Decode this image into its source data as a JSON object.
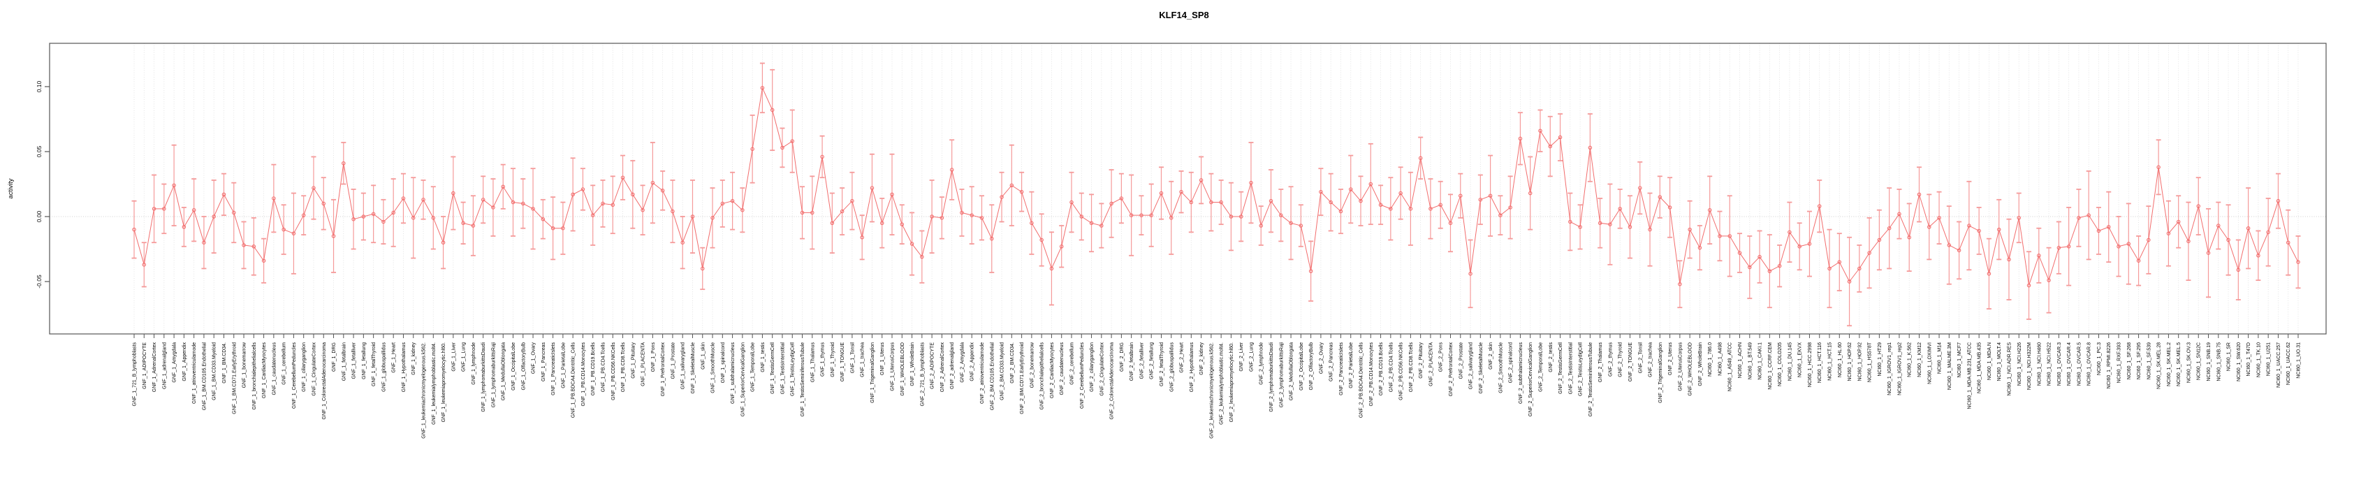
{
  "chart_data": {
    "type": "line",
    "title": "KLF14_SP8",
    "ylabel": "activity",
    "xlabel": "",
    "ylim": [
      -0.09,
      0.133
    ],
    "yticks": [
      "-0.05",
      "0.00",
      "0.05",
      "0.10"
    ],
    "ytick_values": [
      -0.05,
      0.0,
      0.05,
      0.1
    ],
    "grid": "vertical-dotted-per-category, dotted zero line",
    "legend": "none",
    "series_color": "#f26d6d",
    "errorbar_color": "#f59a9a",
    "gridline_color": "#dcdcdc",
    "box_color": "#555555",
    "categories": [
      "GNF_1_721_B_lymphoblasts",
      "GNF_1_ADIPOCYTE",
      "GNF_1_AdrenalCortex",
      "GNF_1_adrenalgland",
      "GNF_1_Amygdala",
      "GNF_1_Appendix",
      "GNF_1_atrioventricularnode",
      "GNF_1_BM.CD105.Endothelial",
      "GNF_1_BM.CD33.Myeloid",
      "GNF_1_BM.CD34.",
      "GNF_1_BM.CD71.EarlyErythroid",
      "GNF_1_bonemarrow",
      "GNF_1_bronchialepithelialcells",
      "GNF_1_CardiacMyocytes",
      "GNF_1_caudatenucleus",
      "GNF_1_cerebellum",
      "GNF_1_CerebellumPeduncles",
      "GNF_1_ciliaryganglion",
      "GNF_1_CingulateCortex",
      "GNF_1_ColorectalAdenocarcinoma",
      "GNF_1_DRG",
      "GNF_1_fetalbrain",
      "GNF_1_fetalliver",
      "GNF_1_fetallung",
      "GNF_1_fetalThyroid",
      "GNF_1_globuspallidus",
      "GNF_1_Heart",
      "GNF_1_Hypothalamus",
      "GNF_1_kidney",
      "GNF_1_leukemiachronicmyelogenous.k562.",
      "GNF_1_leukemialymphoblastic.molt4.",
      "GNF_1_leukemiapromyelocytic.hl60.",
      "GNF_1_Liver",
      "GNF_1_Lung",
      "GNF_1_lymphnode",
      "GNF_1_lymphomaburkittsDaudi",
      "GNF_1_lymphomaburkittsRaji",
      "GNF_1_MedullaOblongata",
      "GNF_1_OccipitalLobe",
      "GNF_1_OlfactoryBulb",
      "GNF_1_Ovary",
      "GNF_1_Pancreas",
      "GNF_1_PancreaticIslets",
      "GNF_1_ParietalLobe",
      "GNF_1_PB.BDCA4.Dentritic_Cells",
      "GNF_1_PB.CD14.Monocytes",
      "GNF_1_PB.CD19.Bcells",
      "GNF_1_PB.CD4.Tcells",
      "GNF_1_PB.CD56.NKCells",
      "GNF_1_PB.CD8.Tcells",
      "GNF_1_Pituitary",
      "GNF_1_PLACENTA",
      "GNF_1_Pons",
      "GNF_1_PrefrontalCortex",
      "GNF_1_Prostate",
      "GNF_1_salivarygland",
      "GNF_1_SkeletalMuscle",
      "GNF_1_skin",
      "GNF_1_SmoothMuscle",
      "GNF_1_spinalcord",
      "GNF_1_subthalamicnucleus",
      "GNF_1_SuperiorCervicalGanglion",
      "GNF_1_TemporalLobe",
      "GNF_1_testis",
      "GNF_1_TestisGermCell",
      "GNF_1_TestisInterstitial",
      "GNF_1_TestisLeydigCell",
      "GNF_1_TestisSeminiferousTubule",
      "GNF_1_Thalamus",
      "GNF_1_thymus",
      "GNF_1_Thyroid",
      "GNF_1_TONGUE",
      "GNF_1_Tonsil",
      "GNF_1_trachea",
      "GNF_1_TrigeminalGanglion",
      "GNF_1_Uterus",
      "GNF_1_UterusCorpus",
      "GNF_1_WHOLEBLOOD",
      "GNF_1_WholeBrain",
      "GNF_2_721_B_lymphoblasts",
      "GNF_2_ADIPOCYTE",
      "GNF_2_AdrenalCortex",
      "GNF_2_adrenalgland",
      "GNF_2_Amygdala",
      "GNF_2_Appendix",
      "GNF_2_atrioventricularnode",
      "GNF_2_BM.CD105.Endothelial",
      "GNF_2_BM.CD33.Myeloid",
      "GNF_2_BM.CD34.",
      "GNF_2_BM.CD71.EarlyErythroid",
      "GNF_2_bonemarrow",
      "GNF_2_bronchialepithelialcells",
      "GNF_2_CardiacMyocytes",
      "GNF_2_caudatenucleus",
      "GNF_2_cerebellum",
      "GNF_2_CerebellumPeduncles",
      "GNF_2_ciliaryganglion",
      "GNF_2_CingulateCortex",
      "GNF_2_ColorectalAdenocarcinoma",
      "GNF_2_DRG",
      "GNF_2_fetalbrain",
      "GNF_2_fetalliver",
      "GNF_2_fetallung",
      "GNF_2_fetalThyroid",
      "GNF_2_globuspallidus",
      "GNF_2_Heart",
      "GNF_2_Hypothalamus",
      "GNF_2_kidney",
      "GNF_2_leukemiachronicmyelogenous.k562.",
      "GNF_2_leukemialymphoblastic.molt4.",
      "GNF_2_leukemiapromyelocytic.hl60.",
      "GNF_2_Liver",
      "GNF_2_Lung",
      "GNF_2_lymphnode",
      "GNF_2_lymphomaburkittsDaudi",
      "GNF_2_lymphomaburkittsRaji",
      "GNF_2_MedullaOblongata",
      "GNF_2_OccipitalLobe",
      "GNF_2_OlfactoryBulb",
      "GNF_2_Ovary",
      "GNF_2_Pancreas",
      "GNF_2_PancreaticIslets",
      "GNF_2_ParietalLobe",
      "GNF_2_PB.BDCA4.Dentritic_Cells",
      "GNF_2_PB.CD14.Monocytes",
      "GNF_2_PB.CD19.Bcells",
      "GNF_2_PB.CD4.Tcells",
      "GNF_2_PB.CD56.NKCells",
      "GNF_2_PB.CD8.Tcells",
      "GNF_2_Pituitary",
      "GNF_2_PLACENTA",
      "GNF_2_Pons",
      "GNF_2_PrefrontalCortex",
      "GNF_2_Prostate",
      "GNF_2_salivarygland",
      "GNF_2_SkeletalMuscle",
      "GNF_2_skin",
      "GNF_2_SmoothMuscle",
      "GNF_2_spinalcord",
      "GNF_2_subthalamicnucleus",
      "GNF_2_SuperiorCervicalGanglion",
      "GNF_2_TemporalLobe",
      "GNF_2_testis",
      "GNF_2_TestisGermCell",
      "GNF_2_TestisInterstitial",
      "GNF_2_TestisLeydigCell",
      "GNF_2_TestisSeminiferousTubule",
      "GNF_2_Thalamus",
      "GNF_2_thymus",
      "GNF_2_Thyroid",
      "GNF_2_TONGUE",
      "GNF_2_Tonsil",
      "GNF_2_trachea",
      "GNF_2_TrigeminalGanglion",
      "GNF_2_Uterus",
      "GNF_2_UterusCorpus",
      "GNF_2_WHOLEBLOOD",
      "GNF_2_WholeBrain",
      "NCI60_1_786.0",
      "NCI60_1_A498",
      "NCI60_1_A549_ATCC",
      "NCI60_1_ACHN",
      "NCI60_1_BT.549",
      "NCI60_1_CAKI.1",
      "NCI60_1_CCRF.CEM",
      "NCI60_1_COLO205",
      "NCI60_1_DU.145",
      "NCI60_1_EKVX",
      "NCI60_1_HCC.2998",
      "NCI60_1_HCT.116",
      "NCI60_1_HCT.15",
      "NCI60_1_HL.60",
      "NCI60_1_HOP.62",
      "NCI60_1_HOP.92",
      "NCI60_1_HS578T",
      "NCI60_1_HT29",
      "NCI60_1_IGROV1_rep1",
      "NCI60_1_IGROV1_rep2",
      "NCI60_1_K.562",
      "NCI60_1_KM12",
      "NCI60_1_LOXIMVI",
      "NCI60_1_M14",
      "NCI60_1_MALME.3M",
      "NCI60_1_MCF7",
      "NCI60_1_MDA.MB.231_ATCC",
      "NCI60_1_MDA.MB.435",
      "NCI60_1_MDA.N",
      "NCI60_1_MOLT.4",
      "NCI60_1_NCI.ADR.RES",
      "NCI60_1_NCI.H226",
      "NCI60_1_NCI.H322M",
      "NCI60_1_NCI.H460",
      "NCI60_1_NCI.H522",
      "NCI60_1_OVCAR.3",
      "NCI60_1_OVCAR.4",
      "NCI60_1_OVCAR.5",
      "NCI60_1_OVCAR.8",
      "NCI60_1_PC.3",
      "NCI60_1_RPMI.8226",
      "NCI60_1_RXF.393",
      "NCI60_1_SF.268",
      "NCI60_1_SF.295",
      "NCI60_1_SF.539",
      "NCI60_1_SK.MEL.28",
      "NCI60_1_SK.MEL.2",
      "NCI60_1_SK.MEL.5",
      "NCI60_1_SK.OV.3",
      "NCI60_1_SN12C",
      "NCI60_1_SNB.19",
      "NCI60_1_SNB.75",
      "NCI60_1_SR",
      "NCI60_1_SW.620",
      "NCI60_1_T47D",
      "NCI60_1_TK.10",
      "NCI60_1_U251",
      "NCI60_1_UACC.257",
      "NCI60_1_UACC.62",
      "NCI60_1_UO.31"
    ],
    "values": [
      -0.01,
      -0.037,
      0.006,
      0.006,
      0.024,
      -0.008,
      0.005,
      -0.02,
      0.0,
      0.017,
      0.003,
      -0.022,
      -0.023,
      -0.034,
      0.014,
      -0.01,
      -0.013,
      0.001,
      0.022,
      0.01,
      -0.015,
      0.041,
      -0.002,
      0.0,
      0.002,
      -0.004,
      0.003,
      0.014,
      -0.001,
      0.013,
      -0.001,
      -0.02,
      0.018,
      -0.005,
      -0.007,
      0.013,
      0.007,
      0.023,
      0.011,
      0.01,
      0.006,
      -0.002,
      -0.009,
      -0.009,
      0.017,
      0.021,
      0.001,
      0.01,
      0.009,
      0.03,
      0.017,
      0.005,
      0.026,
      0.02,
      0.004,
      -0.02,
      0.0,
      -0.04,
      -0.001,
      0.01,
      0.012,
      0.005,
      0.052,
      0.099,
      0.082,
      0.053,
      0.058,
      0.003,
      0.003,
      0.046,
      -0.005,
      0.004,
      0.012,
      -0.016,
      0.022,
      -0.005,
      0.017,
      -0.006,
      -0.021,
      -0.031,
      0.0,
      -0.001,
      0.036,
      0.003,
      0.001,
      -0.001,
      -0.017,
      0.015,
      0.024,
      0.019,
      -0.005,
      -0.018,
      -0.04,
      -0.023,
      0.011,
      0.0,
      -0.005,
      -0.007,
      0.01,
      0.014,
      0.001,
      0.001,
      0.001,
      0.018,
      -0.001,
      0.019,
      0.011,
      0.028,
      0.011,
      0.011,
      0.0,
      0.0,
      0.026,
      -0.007,
      0.012,
      0.001,
      -0.005,
      -0.007,
      -0.042,
      0.019,
      0.011,
      0.004,
      0.021,
      0.012,
      0.025,
      0.009,
      0.006,
      0.018,
      0.006,
      0.045,
      0.006,
      0.009,
      -0.005,
      0.016,
      -0.044,
      0.013,
      0.016,
      0.001,
      0.007,
      0.06,
      0.018,
      0.066,
      0.054,
      0.061,
      -0.004,
      -0.008,
      0.053,
      -0.005,
      -0.006,
      0.006,
      -0.008,
      0.022,
      -0.01,
      0.015,
      0.007,
      -0.052,
      -0.01,
      -0.024,
      0.005,
      -0.015,
      -0.015,
      -0.028,
      -0.039,
      -0.031,
      -0.042,
      -0.038,
      -0.012,
      -0.023,
      -0.021,
      0.008,
      -0.04,
      -0.035,
      -0.05,
      -0.04,
      -0.028,
      -0.018,
      -0.009,
      0.002,
      -0.016,
      0.017,
      -0.008,
      -0.001,
      -0.022,
      -0.026,
      -0.007,
      -0.011,
      -0.044,
      -0.01,
      -0.033,
      -0.001,
      -0.053,
      -0.03,
      -0.049,
      -0.024,
      -0.023,
      -0.001,
      0.001,
      -0.011,
      -0.008,
      -0.023,
      -0.021,
      -0.034,
      -0.018,
      0.038,
      -0.013,
      -0.004,
      -0.019,
      0.008,
      -0.028,
      -0.007,
      -0.018,
      -0.041,
      -0.009,
      -0.03,
      -0.012,
      0.012,
      -0.02,
      -0.035
    ],
    "errors": [
      0.022,
      0.017,
      0.026,
      0.019,
      0.031,
      0.015,
      0.024,
      0.02,
      0.028,
      0.016,
      0.023,
      0.018,
      0.022,
      0.017,
      0.026,
      0.019,
      0.031,
      0.015,
      0.024,
      0.02,
      0.028,
      0.016,
      0.023,
      0.018,
      0.022,
      0.017,
      0.026,
      0.019,
      0.031,
      0.015,
      0.024,
      0.02,
      0.028,
      0.016,
      0.023,
      0.018,
      0.022,
      0.017,
      0.026,
      0.019,
      0.031,
      0.015,
      0.024,
      0.02,
      0.028,
      0.016,
      0.023,
      0.018,
      0.022,
      0.017,
      0.026,
      0.019,
      0.031,
      0.015,
      0.024,
      0.02,
      0.028,
      0.016,
      0.023,
      0.018,
      0.022,
      0.017,
      0.026,
      0.019,
      0.031,
      0.015,
      0.024,
      0.02,
      0.028,
      0.016,
      0.023,
      0.018,
      0.022,
      0.017,
      0.026,
      0.019,
      0.031,
      0.015,
      0.024,
      0.02,
      0.028,
      0.016,
      0.023,
      0.018,
      0.022,
      0.017,
      0.026,
      0.019,
      0.031,
      0.015,
      0.024,
      0.02,
      0.028,
      0.016,
      0.023,
      0.018,
      0.022,
      0.017,
      0.026,
      0.019,
      0.031,
      0.015,
      0.024,
      0.02,
      0.028,
      0.016,
      0.023,
      0.018,
      0.022,
      0.017,
      0.026,
      0.019,
      0.031,
      0.015,
      0.024,
      0.02,
      0.028,
      0.016,
      0.023,
      0.018,
      0.022,
      0.017,
      0.026,
      0.019,
      0.031,
      0.015,
      0.024,
      0.02,
      0.028,
      0.016,
      0.023,
      0.018,
      0.022,
      0.017,
      0.026,
      0.019,
      0.031,
      0.015,
      0.024,
      0.02,
      0.028,
      0.016,
      0.023,
      0.018,
      0.022,
      0.017,
      0.026,
      0.019,
      0.031,
      0.015,
      0.024,
      0.02,
      0.028,
      0.016,
      0.023,
      0.018,
      0.022,
      0.017,
      0.026,
      0.019,
      0.031,
      0.015,
      0.024,
      0.02,
      0.028,
      0.016,
      0.023,
      0.018,
      0.025,
      0.02,
      0.03,
      0.022,
      0.034,
      0.018,
      0.027,
      0.023,
      0.031,
      0.019,
      0.026,
      0.021,
      0.025,
      0.02,
      0.03,
      0.022,
      0.034,
      0.018,
      0.027,
      0.023,
      0.031,
      0.019,
      0.026,
      0.021,
      0.025,
      0.02,
      0.03,
      0.022,
      0.034,
      0.018,
      0.027,
      0.023,
      0.031,
      0.019,
      0.026,
      0.021,
      0.025,
      0.02,
      0.03,
      0.022,
      0.034,
      0.018,
      0.027,
      0.023,
      0.031,
      0.019,
      0.026,
      0.021,
      0.025,
      0.02
    ]
  }
}
